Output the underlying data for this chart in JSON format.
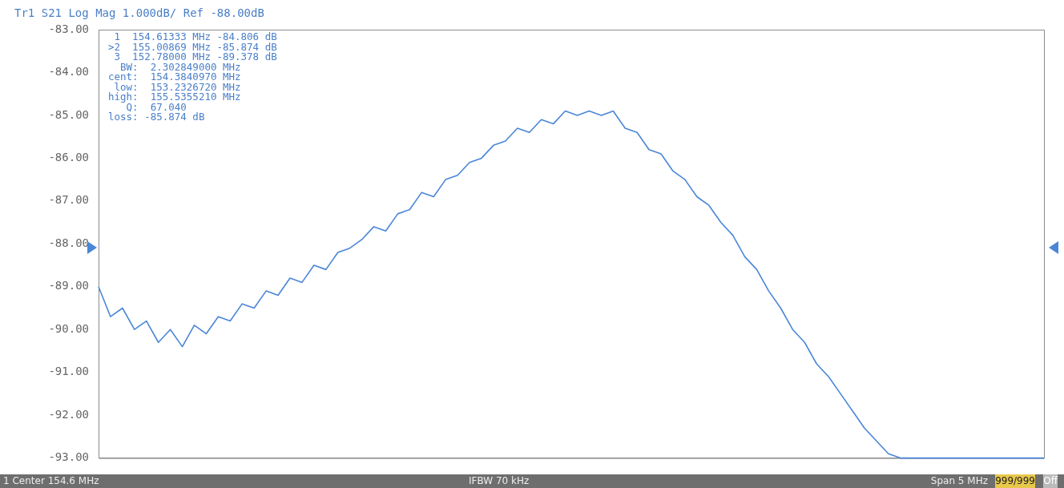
{
  "chart_data": {
    "type": "line",
    "title": "Tr1 S21 Log Mag 1.000dB/ Ref -88.00dB",
    "annotations": [
      " 1  154.61333 MHz -84.806 dB",
      ">2  155.00869 MHz -85.874 dB",
      " 3  152.78000 MHz -89.378 dB",
      "  BW:  2.302849000 MHz",
      "cent:  154.3840970 MHz",
      " low:  153.2326720 MHz",
      "high:  155.5355210 MHz",
      "   Q:  67.040",
      "loss: -85.874 dB",
      "1 Center 154.6 MHz",
      "IFBW 70 kHz",
      "Span 5 MHz",
      "999/999",
      "Off"
    ],
    "categories": [
      null,
      null,
      null,
      null,
      null,
      null,
      null,
      null,
      null,
      null,
      null,
      null,
      null,
      null,
      null,
      null,
      null,
      null,
      null,
      null,
      null,
      null,
      null,
      null,
      null,
      null,
      null,
      null,
      null,
      null,
      null,
      null,
      null,
      null,
      null,
      null,
      null,
      null,
      null,
      null,
      null,
      null,
      null,
      null,
      null,
      null,
      null,
      null,
      null,
      null,
      null,
      null,
      null,
      null,
      null,
      null,
      null,
      null,
      null,
      null,
      null,
      null,
      null,
      null,
      null,
      null,
      null,
      null,
      null,
      null,
      null,
      null,
      null,
      null,
      null,
      null,
      null,
      null,
      null,
      null
    ],
    "series": [
      {
        "color": "#4a86d8",
        "values": [
          -89.0,
          -89.7,
          -89.5,
          -90.0,
          -89.8,
          -90.3,
          -90.0,
          -90.4,
          -89.9,
          -90.1,
          -89.7,
          -89.8,
          -89.4,
          -89.5,
          -89.1,
          -89.2,
          -88.8,
          -88.9,
          -88.5,
          -88.6,
          -88.2,
          -88.1,
          -87.9,
          -87.6,
          -87.7,
          -87.3,
          -87.2,
          -86.8,
          -86.9,
          -86.5,
          -86.4,
          -86.1,
          -86.0,
          -85.7,
          -85.6,
          -85.3,
          -85.4,
          -85.1,
          -85.2,
          -84.9,
          -85.0,
          -84.9,
          -85.0,
          -84.9,
          -85.3,
          -85.4,
          -85.8,
          -85.9,
          -86.3,
          -86.5,
          -86.9,
          -87.1,
          -87.5,
          -87.8,
          -88.3,
          -88.6,
          -89.1,
          -89.5,
          -90.0,
          -90.3,
          -90.8,
          -91.1,
          -91.5,
          -91.9,
          -92.3,
          -92.6,
          -92.9,
          -93.0,
          -93.0,
          -93.0,
          -93.0,
          -93.0,
          -93.0,
          -93.0,
          -93.0,
          -93.0,
          -93.0,
          -93.0,
          -93.0,
          -93.0
        ]
      }
    ],
    "ylim": [
      -93,
      -83
    ],
    "yticks": [
      {
        "value": -93,
        "label": "-93.00"
      },
      {
        "value": -92,
        "label": "-92.00"
      },
      {
        "value": -91,
        "label": "-91.00"
      },
      {
        "value": -90,
        "label": "-90.00"
      },
      {
        "value": -89,
        "label": "-89.00"
      },
      {
        "value": -88,
        "label": "-88.00"
      },
      {
        "value": -87,
        "label": "-87.00"
      },
      {
        "value": -86,
        "label": "-86.00"
      },
      {
        "value": -85,
        "label": "-85.00"
      },
      {
        "value": -84,
        "label": "-84.00"
      },
      {
        "value": -83,
        "label": "-83.00"
      }
    ],
    "tick_labels": "y",
    "marker": "none",
    "line_style": "solid"
  }
}
